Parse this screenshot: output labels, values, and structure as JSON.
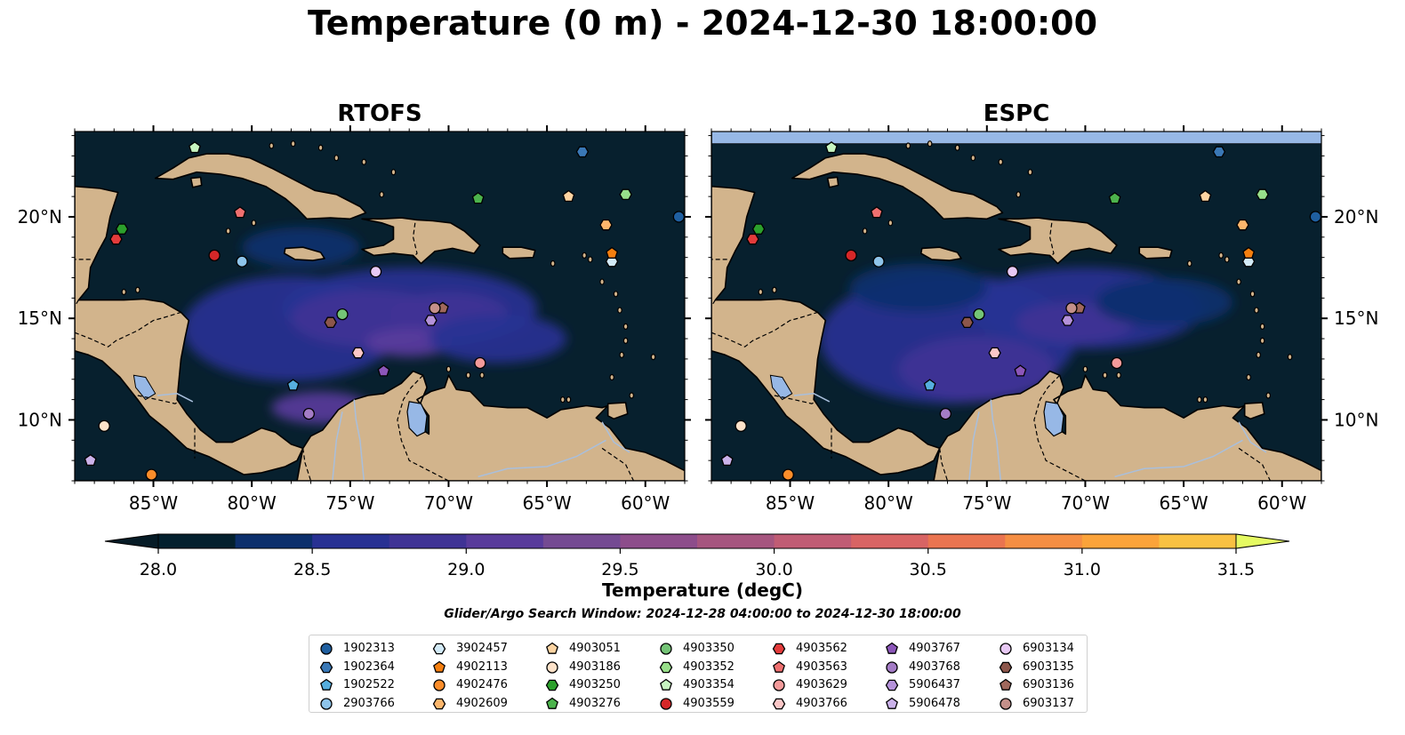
{
  "title": "Temperature (0 m) - 2024-12-30 18:00:00",
  "subtitle": "Glider/Argo Search Window: 2024-12-28 04:00:00 to 2024-12-30 18:00:00",
  "colors": {
    "land": "#d2b48c",
    "ocean_base": "#07202e",
    "lake": "#97b8e6",
    "river": "#a9bfdc",
    "nodata": "#97b8e6"
  },
  "chart_data": {
    "type": "heatmap",
    "panels": [
      {
        "title": "RTOFS",
        "xlim": [
          -89,
          -58
        ],
        "ylim": [
          7,
          24.2
        ]
      },
      {
        "title": "ESPC",
        "xlim": [
          -89,
          -58
        ],
        "ylim": [
          7,
          24.2
        ]
      }
    ],
    "x_ticks": [
      -85,
      -80,
      -75,
      -70,
      -65,
      -60
    ],
    "x_tick_labels": [
      "85°W",
      "80°W",
      "75°W",
      "70°W",
      "65°W",
      "60°W"
    ],
    "y_ticks": [
      10,
      15,
      20
    ],
    "y_tick_labels": [
      "10°N",
      "15°N",
      "20°N"
    ],
    "colorbar": {
      "label": "Temperature (degC)",
      "range": [
        28.0,
        31.5
      ],
      "step": 0.25,
      "ticks": [
        28.0,
        28.5,
        29.0,
        29.5,
        30.0,
        30.5,
        31.0,
        31.5
      ],
      "tick_labels": [
        "28.0",
        "28.5",
        "29.0",
        "29.5",
        "30.0",
        "30.5",
        "31.0",
        "31.5"
      ],
      "colors": [
        "#03202e",
        "#0c2f6c",
        "#283193",
        "#3f3395",
        "#583b9b",
        "#744a92",
        "#8d4d8b",
        "#a6557f",
        "#c05c74",
        "#d86464",
        "#ea7450",
        "#f58e43",
        "#fba33a",
        "#f9c142",
        "#f3d74e"
      ],
      "under_color": "#061b26",
      "over_color": "#e5fa62"
    },
    "fields": [
      {
        "panel": "RTOFS",
        "blobs": [
          {
            "lon": -78,
            "lat": 14.5,
            "rx": 5.5,
            "ry": 2.6,
            "level": 2
          },
          {
            "lon": -72,
            "lat": 15.5,
            "rx": 6.5,
            "ry": 2.0,
            "level": 2
          },
          {
            "lon": -74,
            "lat": 15.0,
            "rx": 4.0,
            "ry": 1.4,
            "level": 3
          },
          {
            "lon": -70,
            "lat": 15.2,
            "rx": 3.0,
            "ry": 1.1,
            "level": 3
          },
          {
            "lon": -76.5,
            "lat": 10.6,
            "rx": 2.5,
            "ry": 0.8,
            "level": 4
          },
          {
            "lon": -72,
            "lat": 13.8,
            "rx": 2.2,
            "ry": 0.7,
            "level": 4
          },
          {
            "lon": -67.5,
            "lat": 14.0,
            "rx": 3.5,
            "ry": 1.2,
            "level": 2
          },
          {
            "lon": -77.5,
            "lat": 18.5,
            "rx": 3.0,
            "ry": 1.0,
            "level": 1
          }
        ]
      },
      {
        "panel": "ESPC",
        "blobs": [
          {
            "lon": -77,
            "lat": 14.0,
            "rx": 6.5,
            "ry": 3.2,
            "level": 2
          },
          {
            "lon": -70,
            "lat": 15.5,
            "rx": 6.0,
            "ry": 2.0,
            "level": 2
          },
          {
            "lon": -75.5,
            "lat": 12.5,
            "rx": 4.0,
            "ry": 1.6,
            "level": 3
          },
          {
            "lon": -70.5,
            "lat": 14.8,
            "rx": 3.0,
            "ry": 1.0,
            "level": 3
          },
          {
            "lon": -78.5,
            "lat": 16.5,
            "rx": 3.5,
            "ry": 1.2,
            "level": 1
          },
          {
            "lon": -66,
            "lat": 15.8,
            "rx": 3.5,
            "ry": 1.2,
            "level": 1
          }
        ]
      }
    ],
    "espc_nodata_lat_min": 23.6,
    "platforms": [
      {
        "id": "1902313",
        "marker": "circle",
        "color": "#1f5fa0",
        "lon": -58.3,
        "lat": 20.0
      },
      {
        "id": "1902364",
        "marker": "hexagon",
        "color": "#3a78b6",
        "lon": -63.2,
        "lat": 23.2
      },
      {
        "id": "1902522",
        "marker": "pentagon",
        "color": "#56aede",
        "lon": -77.9,
        "lat": 11.7
      },
      {
        "id": "2903766",
        "marker": "circle",
        "color": "#8ec4ea",
        "lon": -80.5,
        "lat": 17.8
      },
      {
        "id": "3902457",
        "marker": "hexagon",
        "color": "#d2eaf7",
        "lon": -61.7,
        "lat": 17.8
      },
      {
        "id": "4902113",
        "marker": "pentagon",
        "color": "#f57f0f",
        "lon": -61.7,
        "lat": 18.2
      },
      {
        "id": "4902476",
        "marker": "circle",
        "color": "#fb8d2a",
        "lon": -85.1,
        "lat": 7.3
      },
      {
        "id": "4902609",
        "marker": "hexagon",
        "color": "#fcb66c",
        "lon": -62.0,
        "lat": 19.6
      },
      {
        "id": "4903051",
        "marker": "pentagon",
        "color": "#fdd4a2",
        "lon": -63.9,
        "lat": 21.0
      },
      {
        "id": "4903186",
        "marker": "circle",
        "color": "#fde2c9",
        "lon": -87.5,
        "lat": 9.7
      },
      {
        "id": "4903250",
        "marker": "hexagon",
        "color": "#2ca02c",
        "lon": -86.6,
        "lat": 19.4
      },
      {
        "id": "4903276",
        "marker": "pentagon",
        "color": "#4cb34c",
        "lon": -68.5,
        "lat": 20.9
      },
      {
        "id": "4903350",
        "marker": "circle",
        "color": "#74c476",
        "lon": -75.4,
        "lat": 15.2
      },
      {
        "id": "4903352",
        "marker": "hexagon",
        "color": "#98df8a",
        "lon": -61.0,
        "lat": 21.1
      },
      {
        "id": "4903354",
        "marker": "pentagon",
        "color": "#c7f5c0",
        "lon": -82.9,
        "lat": 23.4
      },
      {
        "id": "4903559",
        "marker": "circle",
        "color": "#d62728",
        "lon": -81.9,
        "lat": 18.1
      },
      {
        "id": "4903562",
        "marker": "hexagon",
        "color": "#e33b3b",
        "lon": -86.9,
        "lat": 18.9
      },
      {
        "id": "4903563",
        "marker": "pentagon",
        "color": "#ef6f6f",
        "lon": -80.6,
        "lat": 20.2
      },
      {
        "id": "4903629",
        "marker": "circle",
        "color": "#f39a9a",
        "lon": -68.4,
        "lat": 12.8
      },
      {
        "id": "4903766",
        "marker": "hexagon",
        "color": "#fbc7c7",
        "lon": -74.6,
        "lat": 13.3
      },
      {
        "id": "4903767",
        "marker": "pentagon",
        "color": "#8c56b9",
        "lon": -73.3,
        "lat": 12.4
      },
      {
        "id": "4903768",
        "marker": "circle",
        "color": "#a47cc6",
        "lon": -77.1,
        "lat": 10.3
      },
      {
        "id": "5906437",
        "marker": "hexagon",
        "color": "#b592da",
        "lon": -70.9,
        "lat": 14.9
      },
      {
        "id": "5906478",
        "marker": "pentagon",
        "color": "#cbb2ea",
        "lon": -88.2,
        "lat": 8.0
      },
      {
        "id": "6903134",
        "marker": "circle",
        "color": "#e8c9f5",
        "lon": -73.7,
        "lat": 17.3
      },
      {
        "id": "6903135",
        "marker": "hexagon",
        "color": "#8c564b",
        "lon": -76.0,
        "lat": 14.8
      },
      {
        "id": "6903136",
        "marker": "pentagon",
        "color": "#a0685c",
        "lon": -70.3,
        "lat": 15.5
      },
      {
        "id": "6903137",
        "marker": "circle",
        "color": "#c4908a",
        "lon": -70.7,
        "lat": 15.5
      }
    ]
  }
}
